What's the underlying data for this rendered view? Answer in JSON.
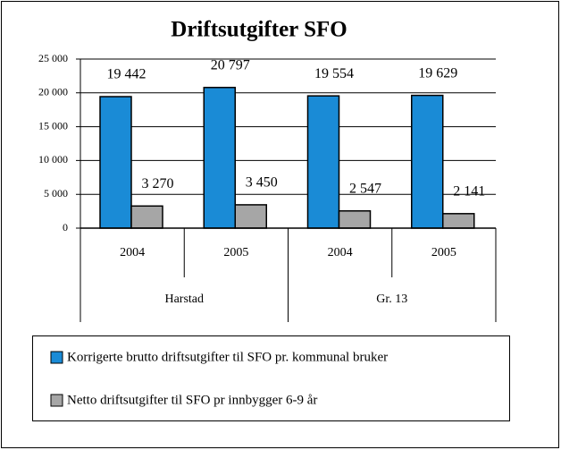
{
  "chart_data": {
    "type": "bar",
    "title": "Driftsutgifter SFO",
    "categories": [
      "2004",
      "2005",
      "2004",
      "2005"
    ],
    "groups": [
      "Harstad",
      "Gr. 13"
    ],
    "series": [
      {
        "name": "Korrigerte brutto driftsutgifter til SFO pr. kommunal bruker",
        "color": "#1a8bd6",
        "values": [
          19442,
          20797,
          19554,
          19629
        ],
        "value_labels": [
          "19 442",
          "20 797",
          "19 554",
          "19 629"
        ]
      },
      {
        "name": "Netto driftsutgifter til SFO pr innbygger 6-9 år",
        "color": "#a6a6a6",
        "values": [
          3270,
          3450,
          2547,
          2141
        ],
        "value_labels": [
          "3 270",
          "3 450",
          "2 547",
          "2 141"
        ]
      }
    ],
    "ylim": [
      0,
      25000
    ],
    "yticks": [
      0,
      {
        "value": 5000,
        "label": "5 000"
      },
      {
        "value": 10000,
        "label": "10 000"
      },
      {
        "value": 15000,
        "label": "15 000"
      },
      {
        "value": 20000,
        "label": "20 000"
      },
      {
        "value": 25000,
        "label": "25 000"
      }
    ],
    "grid": true,
    "legend": "bottom"
  }
}
